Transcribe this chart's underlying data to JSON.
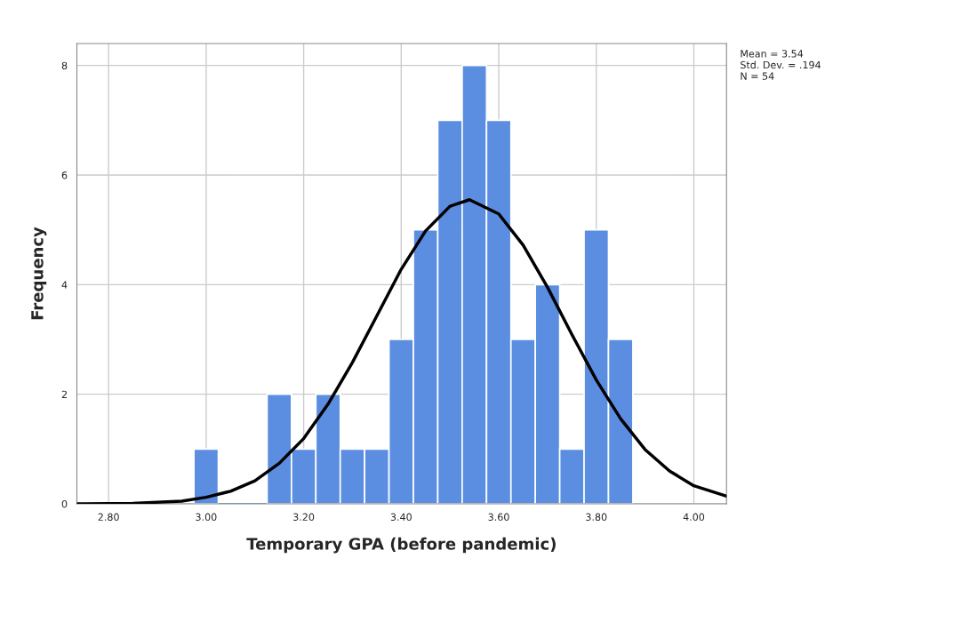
{
  "chart_data": {
    "type": "histogram",
    "xlabel": "Temporary GPA (before pandemic)",
    "ylabel": "Frequency",
    "bins": [
      2.975,
      3.025,
      3.075,
      3.125,
      3.175,
      3.225,
      3.275,
      3.325,
      3.375,
      3.425,
      3.475,
      3.525,
      3.575,
      3.625,
      3.675,
      3.725,
      3.775,
      3.825,
      3.875
    ],
    "values": [
      1,
      0,
      0,
      2,
      1,
      2,
      1,
      1,
      3,
      5,
      7,
      8,
      7,
      3,
      4,
      1,
      5,
      3
    ],
    "color": "#5b8ee0",
    "series": [
      {
        "type": "line",
        "color": "#000000",
        "x": [
          2.735,
          2.75,
          2.85,
          2.95,
          3.0,
          3.05,
          3.1,
          3.15,
          3.2,
          3.25,
          3.3,
          3.35,
          3.4,
          3.45,
          3.5,
          3.54,
          3.6,
          3.65,
          3.7,
          3.75,
          3.8,
          3.85,
          3.9,
          3.95,
          4.0,
          4.067
        ],
        "values": [
          0.0,
          0.0,
          0.01,
          0.05,
          0.12,
          0.23,
          0.42,
          0.74,
          1.19,
          1.82,
          2.58,
          3.43,
          4.28,
          4.98,
          5.43,
          5.55,
          5.29,
          4.72,
          3.95,
          3.09,
          2.26,
          1.55,
          0.99,
          0.6,
          0.33,
          0.14
        ]
      }
    ],
    "xlim": [
      2.735,
      4.067
    ],
    "ylim": [
      0,
      8.4
    ],
    "xticks": [
      {
        "value": 2.8,
        "label": "2.80"
      },
      {
        "value": 3.0,
        "label": "3.00"
      },
      {
        "value": 3.2,
        "label": "3.20"
      },
      {
        "value": 3.4,
        "label": "3.40"
      },
      {
        "value": 3.6,
        "label": "3.60"
      },
      {
        "value": 3.8,
        "label": "3.80"
      },
      {
        "value": 4.0,
        "label": "4.00"
      }
    ],
    "yticks": [
      0,
      2,
      4,
      6,
      8
    ],
    "grid": true,
    "annotations": [
      "Mean = 3.54",
      "Std. Dev. = .194",
      "N = 54"
    ]
  }
}
